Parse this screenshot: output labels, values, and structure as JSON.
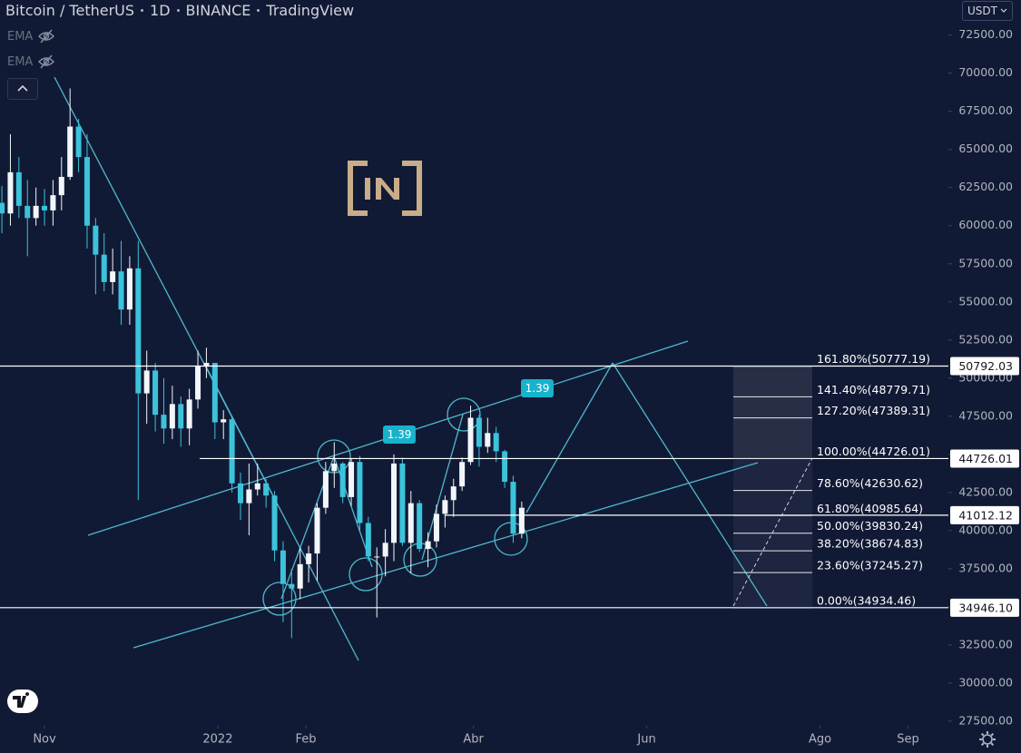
{
  "header": {
    "symbol": "Bitcoin / TetherUS",
    "interval": "1D",
    "exchange": "BINANCE",
    "source": "TradingView"
  },
  "indicators": [
    "EMA",
    "EMA"
  ],
  "currency": "USDT",
  "chart_data": {
    "type": "candlestick",
    "x": [
      -15,
      -12,
      -9,
      -6,
      -3,
      0,
      3,
      6,
      9,
      12,
      15,
      18,
      21,
      24,
      27,
      30,
      33,
      36,
      39,
      42,
      45,
      48,
      51,
      54,
      57,
      60,
      63,
      66,
      69,
      72,
      75,
      78,
      81,
      84,
      87,
      90,
      93,
      96,
      99,
      102,
      105,
      108,
      111,
      114,
      117,
      120,
      123,
      126,
      129,
      132,
      135,
      138,
      141,
      144,
      147,
      150,
      153,
      156,
      159,
      162,
      165,
      168
    ],
    "open": [
      61500,
      60800,
      63500,
      61300,
      60500,
      61300,
      61000,
      62000,
      63200,
      66500,
      64500,
      60000,
      58100,
      56300,
      57000,
      54500,
      57200,
      49000,
      50500,
      47600,
      46700,
      48300,
      46700,
      48600,
      50800,
      51000,
      47100,
      47300,
      43100,
      41800,
      42700,
      43100,
      42300,
      38700,
      36500,
      36200,
      37800,
      38500,
      41500,
      43900,
      44400,
      42200,
      44500,
      40500,
      38300,
      38300,
      39200,
      44400,
      39200,
      41800,
      38800,
      39300,
      41100,
      42000,
      42900,
      44500,
      47400,
      45500,
      46400,
      45200,
      43200,
      39800
    ],
    "high": [
      62600,
      66000,
      64500,
      63000,
      62500,
      62400,
      63000,
      64500,
      69000,
      67000,
      66000,
      60500,
      59500,
      58500,
      59000,
      58000,
      59000,
      51800,
      51000,
      50000,
      49500,
      48800,
      49300,
      51800,
      52000,
      51000,
      47900,
      47500,
      43800,
      44400,
      44400,
      43400,
      42600,
      39300,
      37500,
      38900,
      39000,
      41800,
      44500,
      45800,
      44500,
      44700,
      44900,
      40900,
      38900,
      40100,
      45000,
      44800,
      42600,
      42000,
      39900,
      41700,
      42300,
      43400,
      44800,
      48200,
      47600,
      47400,
      46800,
      45300,
      43600,
      41900
    ],
    "low": [
      59500,
      60000,
      60500,
      58000,
      60000,
      60000,
      60000,
      61000,
      63000,
      63500,
      58500,
      55500,
      55700,
      55500,
      53500,
      53500,
      42000,
      47000,
      46500,
      45700,
      46000,
      45500,
      45600,
      48000,
      50000,
      46000,
      46000,
      42500,
      40700,
      39700,
      42300,
      41500,
      38000,
      34000,
      32950,
      35500,
      36600,
      36700,
      41100,
      42800,
      41800,
      41600,
      40000,
      38000,
      34300,
      37000,
      38000,
      39000,
      37200,
      38600,
      37600,
      38900,
      40200,
      40900,
      42600,
      44300,
      44200,
      45100,
      44500,
      42800,
      39200,
      39500
    ],
    "close": [
      60800,
      63500,
      61300,
      60500,
      61300,
      61000,
      62000,
      63200,
      66500,
      64500,
      60000,
      58100,
      56300,
      57000,
      54500,
      57200,
      49000,
      50500,
      47600,
      46700,
      48300,
      46700,
      48600,
      50800,
      51000,
      47100,
      47300,
      43100,
      41800,
      42700,
      43100,
      42300,
      38700,
      36500,
      36200,
      37800,
      38500,
      41500,
      43900,
      44400,
      42200,
      44500,
      40500,
      38300,
      38300,
      39200,
      44400,
      39200,
      41800,
      38800,
      39300,
      41100,
      42000,
      42900,
      44500,
      47400,
      45500,
      46400,
      45200,
      43200,
      39800,
      41500
    ],
    "up_color": "#f2f6fa",
    "down_color": "#3cc3dc",
    "xlim": [
      -15.66,
      318.2
    ],
    "xticks": [
      {
        "value": 0,
        "label": "Nov"
      },
      {
        "value": 61,
        "label": "2022"
      },
      {
        "value": 92,
        "label": "Feb"
      },
      {
        "value": 151,
        "label": "Abr"
      },
      {
        "value": 212,
        "label": "Jun"
      },
      {
        "value": 273,
        "label": "Ago"
      },
      {
        "value": 304,
        "label": "Sep"
      }
    ],
    "ylim": [
      27200,
      74800
    ],
    "yticks": [
      {
        "value": 27500,
        "label": "27500.00"
      },
      {
        "value": 30000,
        "label": "30000.00"
      },
      {
        "value": 32500,
        "label": "32500.00"
      },
      {
        "value": 35000,
        "label": "35000.00"
      },
      {
        "value": 37500,
        "label": "37500.00"
      },
      {
        "value": 40000,
        "label": "40000.00"
      },
      {
        "value": 42500,
        "label": "42500.00"
      },
      {
        "value": 45000,
        "label": "45000.00"
      },
      {
        "value": 47500,
        "label": "47500.00"
      },
      {
        "value": 50000,
        "label": "50000.00"
      },
      {
        "value": 52500,
        "label": "52500.00"
      },
      {
        "value": 55000,
        "label": "55000.00"
      },
      {
        "value": 57500,
        "label": "57500.00"
      },
      {
        "value": 60000,
        "label": "60000.00"
      },
      {
        "value": 62500,
        "label": "62500.00"
      },
      {
        "value": 65000,
        "label": "65000.00"
      },
      {
        "value": 67500,
        "label": "67500.00"
      },
      {
        "value": 70000,
        "label": "70000.00"
      },
      {
        "value": 72500,
        "label": "72500.00"
      }
    ],
    "price_lines": [
      {
        "value": 50792.03,
        "label": "50792.03"
      },
      {
        "value": 44726.01,
        "label": "44726.01"
      },
      {
        "value": 41012.12,
        "label": "41012.12"
      },
      {
        "value": 34946.1,
        "label": "34946.10"
      }
    ],
    "fib_levels": [
      {
        "value": 50777.19,
        "label": "161.80%(50777.19)"
      },
      {
        "value": 48779.71,
        "label": "141.40%(48779.71)"
      },
      {
        "value": 47389.31,
        "label": "127.20%(47389.31)"
      },
      {
        "value": 44726.01,
        "label": "100.00%(44726.01)"
      },
      {
        "value": 42630.62,
        "label": "78.60%(42630.62)"
      },
      {
        "value": 40985.64,
        "label": "61.80%(40985.64)"
      },
      {
        "value": 39830.24,
        "label": "50.00%(39830.24)"
      },
      {
        "value": 38674.83,
        "label": "38.20%(38674.83)"
      },
      {
        "value": 37245.27,
        "label": "23.60%(37245.27)"
      },
      {
        "value": 34934.46,
        "label": "0.00%(34934.46)"
      }
    ],
    "annotations": [
      "1.39",
      "1.39"
    ]
  }
}
